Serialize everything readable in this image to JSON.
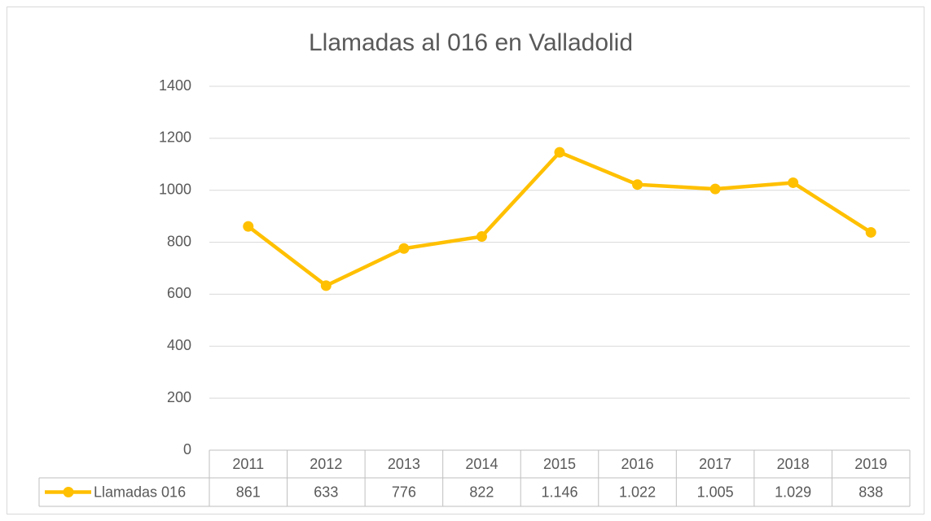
{
  "chart_data": {
    "type": "line",
    "title": "Llamadas al 016 en Valladolid",
    "categories": [
      "2011",
      "2012",
      "2013",
      "2014",
      "2015",
      "2016",
      "2017",
      "2018",
      "2019"
    ],
    "series": [
      {
        "name": "Llamadas 016",
        "color": "#FFC000",
        "values": [
          861,
          633,
          776,
          822,
          1146,
          1022,
          1005,
          1029,
          838
        ],
        "value_labels": [
          "861",
          "633",
          "776",
          "822",
          "1.146",
          "1.022",
          "1.005",
          "1.029",
          "838"
        ]
      }
    ],
    "ylim": [
      0,
      1400
    ],
    "yticks": [
      0,
      200,
      400,
      600,
      800,
      1000,
      1200,
      1400
    ],
    "grid": true,
    "data_table": true
  }
}
